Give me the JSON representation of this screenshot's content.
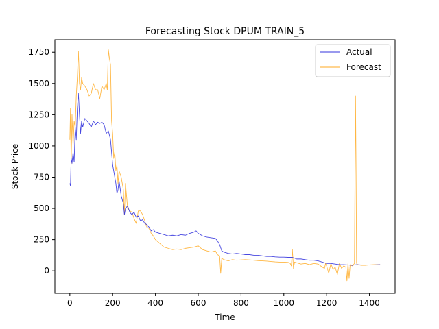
{
  "chart_data": {
    "type": "line",
    "title": "Forecasting Stock DPUM TRAIN_5",
    "xlabel": "Time",
    "ylabel": "Stock Price",
    "xlim": [
      -70,
      1520
    ],
    "ylim": [
      -180,
      1850
    ],
    "xticks": [
      0,
      200,
      400,
      600,
      800,
      1000,
      1200,
      1400
    ],
    "yticks": [
      0,
      250,
      500,
      750,
      1000,
      1250,
      1500,
      1750
    ],
    "grid": false,
    "legend_position": "top-right",
    "series": [
      {
        "name": "Actual",
        "color": "#3333dd",
        "x": [
          0,
          3,
          6,
          10,
          15,
          20,
          25,
          30,
          35,
          40,
          45,
          50,
          55,
          60,
          70,
          80,
          90,
          100,
          110,
          120,
          130,
          140,
          150,
          160,
          170,
          180,
          190,
          195,
          200,
          205,
          210,
          215,
          220,
          225,
          230,
          240,
          250,
          255,
          260,
          270,
          280,
          290,
          300,
          310,
          320,
          330,
          340,
          350,
          360,
          370,
          380,
          390,
          400,
          420,
          440,
          460,
          480,
          500,
          520,
          540,
          560,
          580,
          590,
          600,
          620,
          640,
          660,
          680,
          690,
          700,
          710,
          720,
          740,
          760,
          780,
          800,
          820,
          840,
          860,
          880,
          900,
          920,
          940,
          960,
          980,
          1000,
          1020,
          1040,
          1060,
          1080,
          1100,
          1120,
          1140,
          1160,
          1180,
          1200,
          1220,
          1240,
          1260,
          1280,
          1300,
          1320,
          1340,
          1360,
          1380,
          1400,
          1420,
          1450
        ],
        "y": [
          700,
          680,
          900,
          860,
          950,
          870,
          1150,
          1050,
          1300,
          1420,
          1250,
          1100,
          1200,
          1150,
          1220,
          1200,
          1180,
          1150,
          1200,
          1170,
          1190,
          1180,
          1190,
          1170,
          1100,
          1120,
          1050,
          950,
          850,
          800,
          750,
          700,
          620,
          650,
          720,
          600,
          540,
          450,
          500,
          520,
          470,
          450,
          470,
          430,
          440,
          400,
          410,
          380,
          370,
          350,
          320,
          330,
          310,
          300,
          290,
          280,
          285,
          280,
          290,
          285,
          300,
          310,
          320,
          300,
          280,
          270,
          265,
          260,
          240,
          210,
          160,
          150,
          140,
          135,
          140,
          135,
          130,
          130,
          125,
          125,
          120,
          115,
          115,
          112,
          110,
          110,
          108,
          108,
          95,
          95,
          90,
          85,
          85,
          80,
          70,
          60,
          60,
          55,
          50,
          50,
          48,
          45,
          50,
          48,
          48,
          48,
          48,
          50
        ]
      },
      {
        "name": "Forecast",
        "color": "#ffaa22",
        "x": [
          0,
          3,
          6,
          10,
          15,
          20,
          25,
          30,
          35,
          40,
          45,
          50,
          55,
          60,
          70,
          80,
          90,
          100,
          110,
          120,
          130,
          140,
          150,
          160,
          170,
          175,
          180,
          185,
          190,
          195,
          200,
          205,
          210,
          215,
          220,
          225,
          230,
          240,
          250,
          255,
          260,
          270,
          280,
          290,
          300,
          310,
          320,
          330,
          340,
          350,
          360,
          370,
          380,
          390,
          400,
          420,
          440,
          460,
          480,
          500,
          520,
          540,
          560,
          580,
          600,
          620,
          640,
          660,
          680,
          690,
          700,
          705,
          710,
          720,
          740,
          760,
          780,
          800,
          820,
          840,
          860,
          880,
          900,
          920,
          940,
          960,
          980,
          1000,
          1020,
          1030,
          1035,
          1040,
          1045,
          1050,
          1060,
          1080,
          1100,
          1120,
          1140,
          1160,
          1180,
          1190,
          1195,
          1200,
          1210,
          1220,
          1230,
          1240,
          1250,
          1260,
          1270,
          1280,
          1290,
          1295,
          1300,
          1305,
          1310,
          1320,
          1330,
          1335,
          1337,
          1340,
          1345,
          1360,
          1380,
          1400,
          1420,
          1450
        ],
        "y": [
          1050,
          1300,
          850,
          1250,
          1000,
          1200,
          1150,
          1400,
          1550,
          1760,
          1500,
          1450,
          1550,
          1500,
          1480,
          1450,
          1400,
          1420,
          1500,
          1450,
          1450,
          1380,
          1480,
          1450,
          1500,
          1450,
          1770,
          1700,
          1650,
          1200,
          1100,
          900,
          950,
          800,
          850,
          700,
          800,
          750,
          650,
          450,
          700,
          500,
          480,
          470,
          420,
          380,
          480,
          480,
          450,
          400,
          350,
          340,
          300,
          280,
          250,
          220,
          190,
          180,
          170,
          175,
          170,
          180,
          185,
          190,
          200,
          170,
          160,
          150,
          160,
          130,
          120,
          -20,
          100,
          90,
          80,
          90,
          85,
          88,
          90,
          88,
          85,
          82,
          80,
          78,
          75,
          72,
          70,
          70,
          68,
          60,
          40,
          170,
          20,
          70,
          65,
          55,
          60,
          50,
          60,
          55,
          30,
          20,
          60,
          40,
          -20,
          60,
          10,
          30,
          -30,
          60,
          20,
          40,
          30,
          -80,
          60,
          -60,
          50,
          40,
          60,
          1400,
          950,
          60,
          50,
          45,
          45,
          48,
          50,
          50
        ]
      }
    ]
  }
}
